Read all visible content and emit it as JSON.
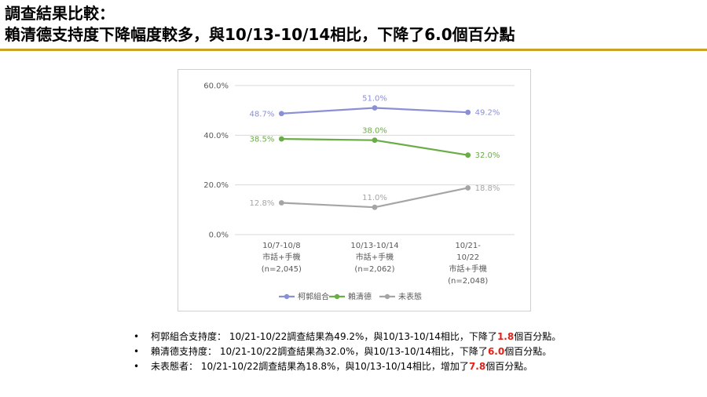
{
  "header": {
    "line1": "調查結果比較：",
    "line2": "賴清德支持度下降幅度較多，與10/13-10/14相比，下降了6.0個百分點"
  },
  "colors": {
    "rule": "#c9a227",
    "highlight": "#e32119"
  },
  "chart_data": {
    "type": "line",
    "categories": [
      [
        "10/7-10/8",
        "市話+手機",
        "(n=2,045)"
      ],
      [
        "10/13-10/14",
        "市話+手機",
        "(n=2,062)"
      ],
      [
        "10/21-",
        "10/22",
        "市話+手機",
        "(n=2,048)"
      ]
    ],
    "y_ticks": [
      "0.0%",
      "20.0%",
      "40.0%",
      "60.0%"
    ],
    "ylim": [
      0,
      60
    ],
    "grid": true,
    "legend_position": "bottom",
    "series": [
      {
        "name": "柯郭組合",
        "color": "#8b8fd4",
        "values": [
          48.7,
          51.0,
          49.2
        ],
        "labels": [
          "48.7%",
          "51.0%",
          "49.2%"
        ]
      },
      {
        "name": "賴清德",
        "color": "#6aac46",
        "values": [
          38.5,
          38.0,
          32.0
        ],
        "labels": [
          "38.5%",
          "38.0%",
          "32.0%"
        ]
      },
      {
        "name": "未表態",
        "color": "#a5a5a5",
        "values": [
          12.8,
          11.0,
          18.8
        ],
        "labels": [
          "12.8%",
          "11.0%",
          "18.8%"
        ]
      }
    ]
  },
  "bullets": [
    {
      "pre": "柯郭組合支持度： 10/21-10/22調查結果為49.2%，與10/13-10/14相比，下降了",
      "num": "1.8",
      "post": "個百分點。"
    },
    {
      "pre": "賴清德支持度： 10/21-10/22調查結果為32.0%，與10/13-10/14相比，下降了",
      "num": "6.0",
      "post": "個百分點。"
    },
    {
      "pre": "未表態者： 10/21-10/22調查結果為18.8%，與10/13-10/14相比，增加了",
      "num": "7.8",
      "post": "個百分點。"
    }
  ],
  "bullet_symbol": "•"
}
